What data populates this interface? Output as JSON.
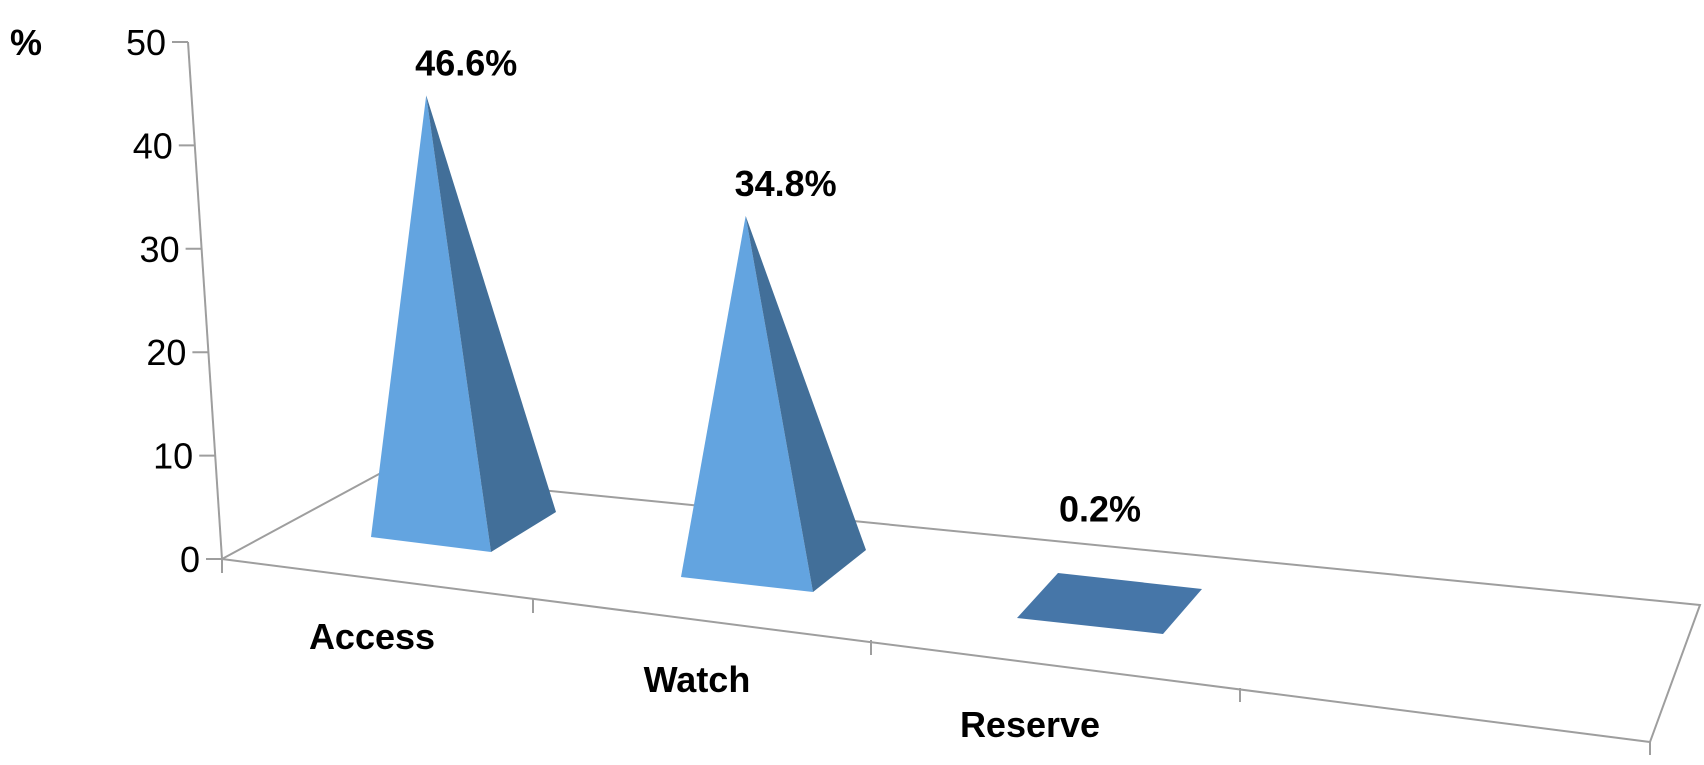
{
  "chart_data": {
    "type": "bar",
    "style": "3d-pyramid",
    "categories": [
      "Access",
      "Watch",
      "Reserve"
    ],
    "values": [
      46.6,
      34.8,
      0.2
    ],
    "data_labels": [
      "46.6%",
      "34.8%",
      "0.2%"
    ],
    "ylabel": "%",
    "yticks": [
      "0",
      "10",
      "20",
      "30",
      "40",
      "50"
    ],
    "ylim": [
      0,
      50
    ],
    "grid": false,
    "legend": "none",
    "colors": {
      "light": "#63a4e0",
      "dark": "#426f99",
      "floor": "#4676a8",
      "axis": "#9e9e9e"
    }
  }
}
